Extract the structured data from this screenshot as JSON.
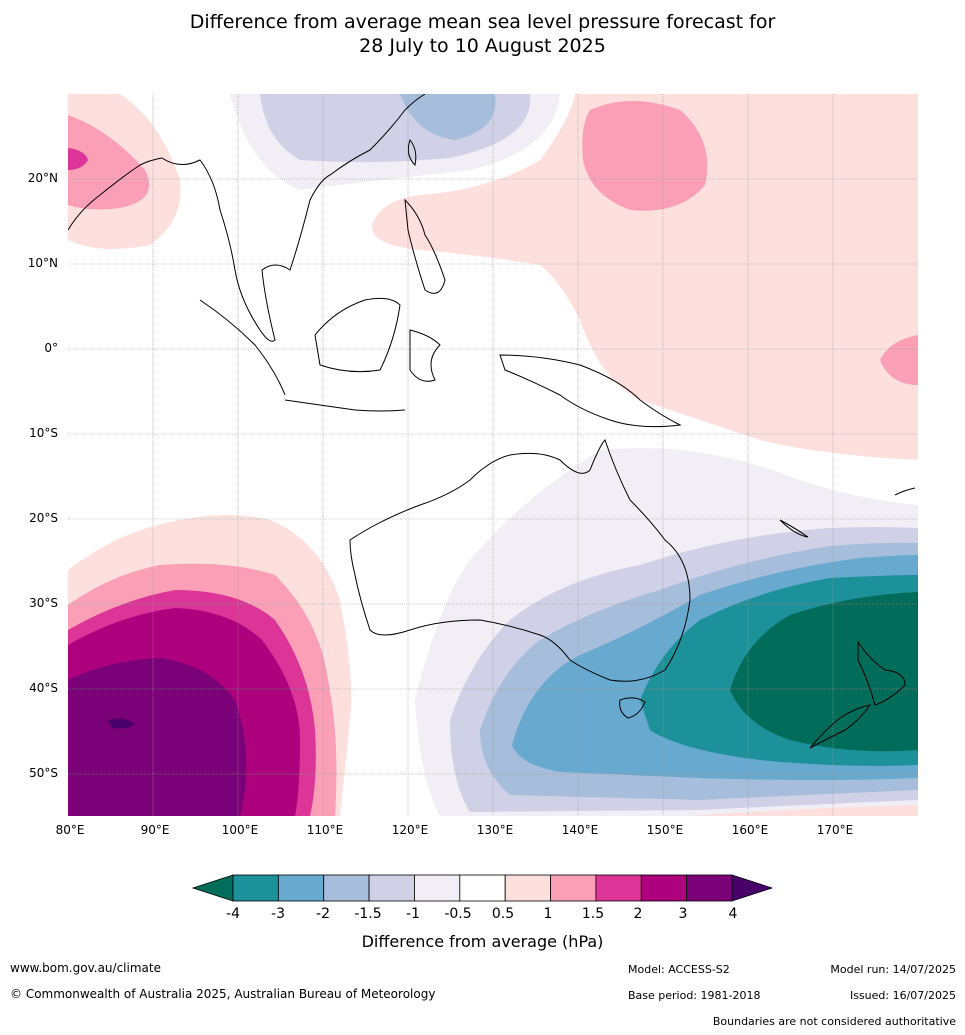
{
  "title_line1": "Difference from average mean sea level pressure forecast for",
  "title_line2": "28 July to 10 August 2025",
  "lat_labels": [
    "20°N",
    "10°N",
    "0°",
    "10°S",
    "20°S",
    "30°S",
    "40°S",
    "50°S"
  ],
  "lon_labels": [
    "80°E",
    "90°E",
    "100°E",
    "110°E",
    "120°E",
    "130°E",
    "140°E",
    "150°E",
    "160°E",
    "170°E"
  ],
  "colorbar": {
    "ticks": [
      "-4",
      "-3",
      "-2",
      "-1.5",
      "-1",
      "-0.5",
      "0.5",
      "1",
      "1.5",
      "2",
      "3",
      "4"
    ],
    "colors": [
      "#1d9199",
      "#67a9cf",
      "#a6bddb",
      "#d0d1e6",
      "#f1eef6",
      "#ffffff",
      "#fde0dd",
      "#fa9fb5",
      "#dd3497",
      "#ae017e",
      "#7a0177"
    ],
    "under_color": "#016c59",
    "over_color": "#49006a",
    "label": "Difference from average (hPa)"
  },
  "footer": {
    "website": "www.bom.gov.au/climate",
    "copyright": "© Commonwealth of Australia 2025, Australian Bureau of Meteorology",
    "model": "Model: ACCESS-S2",
    "model_run": "Model run: 14/07/2025",
    "base_period": "Base period: 1981-2018",
    "issued": "Issued: 16/07/2025",
    "disclaimer": "Boundaries are not considered authoritative"
  }
}
